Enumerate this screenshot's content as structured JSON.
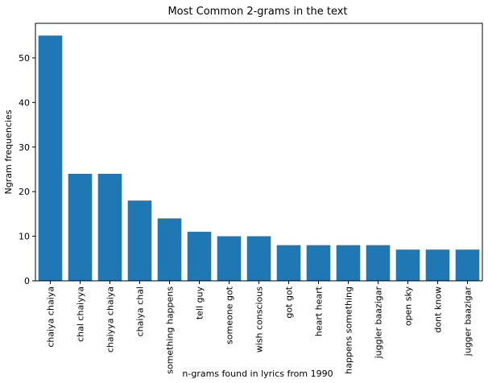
{
  "chart_data": {
    "type": "bar",
    "title": "Most Common 2-grams in the text",
    "xlabel": "n-grams found in lyrics from 1990",
    "ylabel": "Ngram frequencies",
    "categories": [
      "chaiya chaiya",
      "chal chaiyya",
      "chaiyya chaiya",
      "chaiya chal",
      "something happens",
      "tell guy",
      "someone got",
      "wish conscious",
      "got got",
      "heart heart",
      "happens something",
      "juggler baazigar",
      "open sky",
      "dont know",
      "jugger baazigar"
    ],
    "values": [
      55,
      24,
      24,
      18,
      14,
      11,
      10,
      10,
      8,
      8,
      8,
      8,
      7,
      7,
      7
    ],
    "ylim": [
      0,
      57.75
    ],
    "yticks": [
      0,
      10,
      20,
      30,
      40,
      50
    ],
    "bar_color": "#1f77b4",
    "grid": false,
    "legend": "none"
  }
}
